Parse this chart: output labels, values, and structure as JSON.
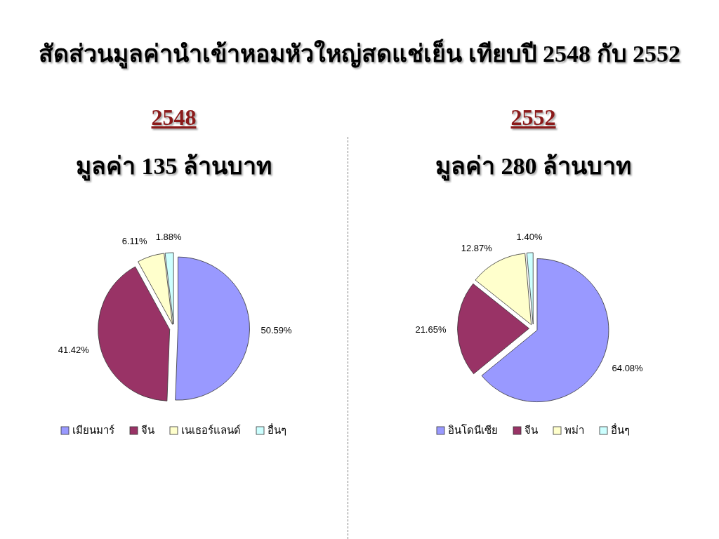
{
  "chart_data": [
    {
      "type": "pie",
      "annotations": [
        "สัดส่วนมูลค่านำเข้าหอมหัวใหญ่สดแช่เย็น เทียบปี 2548 กับ 2552"
      ],
      "title": "2548",
      "subtitle": "มูลค่า 135 ล้านบาท",
      "categories": [
        "เมียนมาร์",
        "จีน",
        "เนเธอร์แลนด์",
        "อื่นๆ"
      ],
      "values": [
        50.59,
        41.42,
        6.11,
        1.88
      ],
      "value_labels": [
        "50.59%",
        "41.42%",
        "6.11%",
        "1.88%"
      ],
      "colors": [
        "#9999ff",
        "#993366",
        "#ffffcc",
        "#ccffff"
      ],
      "legend": "bottom"
    },
    {
      "type": "pie",
      "title": "2552",
      "subtitle": "มูลค่า 280 ล้านบาท",
      "categories": [
        "อินโดนีเซีย",
        "จีน",
        "พม่า",
        "อื่นๆ"
      ],
      "values": [
        64.08,
        21.65,
        12.87,
        1.4
      ],
      "value_labels": [
        "64.08%",
        "21.65%",
        "12.87%",
        "1.40%"
      ],
      "colors": [
        "#9999ff",
        "#993366",
        "#ffffcc",
        "#ccffff"
      ],
      "legend": "bottom"
    }
  ]
}
